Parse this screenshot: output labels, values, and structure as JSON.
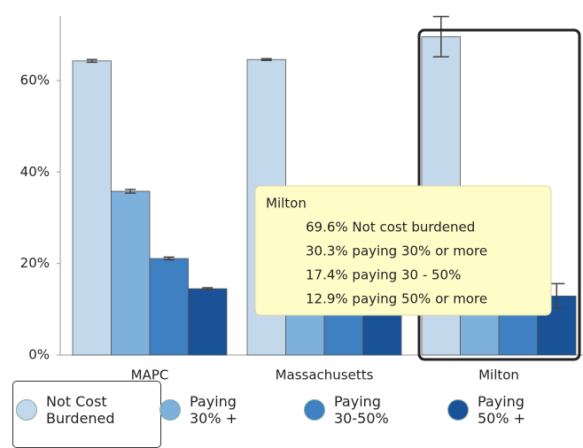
{
  "chart_data": {
    "type": "bar",
    "categories": [
      "MAPC",
      "Massachusetts",
      "Milton"
    ],
    "series": [
      {
        "name": "Not Cost\nBurdened",
        "color": "#c3d8ea",
        "values": [
          64.3,
          64.6,
          69.6
        ],
        "errors": [
          0.3,
          0.2,
          4.4
        ]
      },
      {
        "name": "Paying\n30% +",
        "color": "#7db0da",
        "values": [
          35.8,
          35.3,
          30.3
        ],
        "errors": [
          0.4,
          0.2,
          3.0
        ]
      },
      {
        "name": "Paying\n30-50%",
        "color": "#3f80c2",
        "values": [
          21.1,
          20.5,
          17.4
        ],
        "errors": [
          0.3,
          0.2,
          2.8
        ]
      },
      {
        "name": "Paying\n50% +",
        "color": "#1a5298",
        "values": [
          14.5,
          15.0,
          12.9
        ],
        "errors": [
          0.2,
          0.1,
          2.7
        ]
      }
    ],
    "ylim": [
      0,
      72
    ],
    "yticks": [
      {
        "value": 0,
        "label": "0%"
      },
      {
        "value": 20,
        "label": "20%"
      },
      {
        "value": 40,
        "label": "40%"
      },
      {
        "value": 60,
        "label": "60%"
      }
    ],
    "grid": false,
    "tooltip": {
      "title": "Milton",
      "lines": [
        "69.6% Not cost burdened",
        "30.3% paying 30% or more",
        "17.4% paying 30 - 50%",
        "12.9% paying 50% or more"
      ]
    }
  }
}
